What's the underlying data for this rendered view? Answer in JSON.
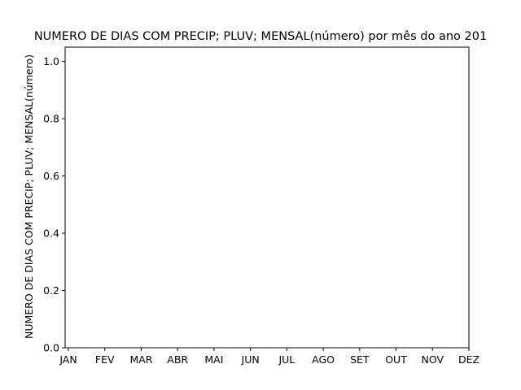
{
  "chart_data": {
    "type": "line",
    "title": "NUMERO DE DIAS COM PRECIP; PLUV; MENSAL(número) por mês do ano 201",
    "xlabel": "",
    "ylabel": "NUMERO DE DIAS COM PRECIP; PLUV; MENSAL(número)",
    "categories": [
      "JAN",
      "FEV",
      "MAR",
      "ABR",
      "MAI",
      "JUN",
      "JUL",
      "AGO",
      "SET",
      "OUT",
      "NOV",
      "DEZ"
    ],
    "series": [],
    "ylim": [
      0,
      1.05
    ],
    "yticks": [
      "0.0",
      "0.2",
      "0.4",
      "0.6",
      "0.8",
      "1.0"
    ],
    "grid": false,
    "legend": "none"
  }
}
